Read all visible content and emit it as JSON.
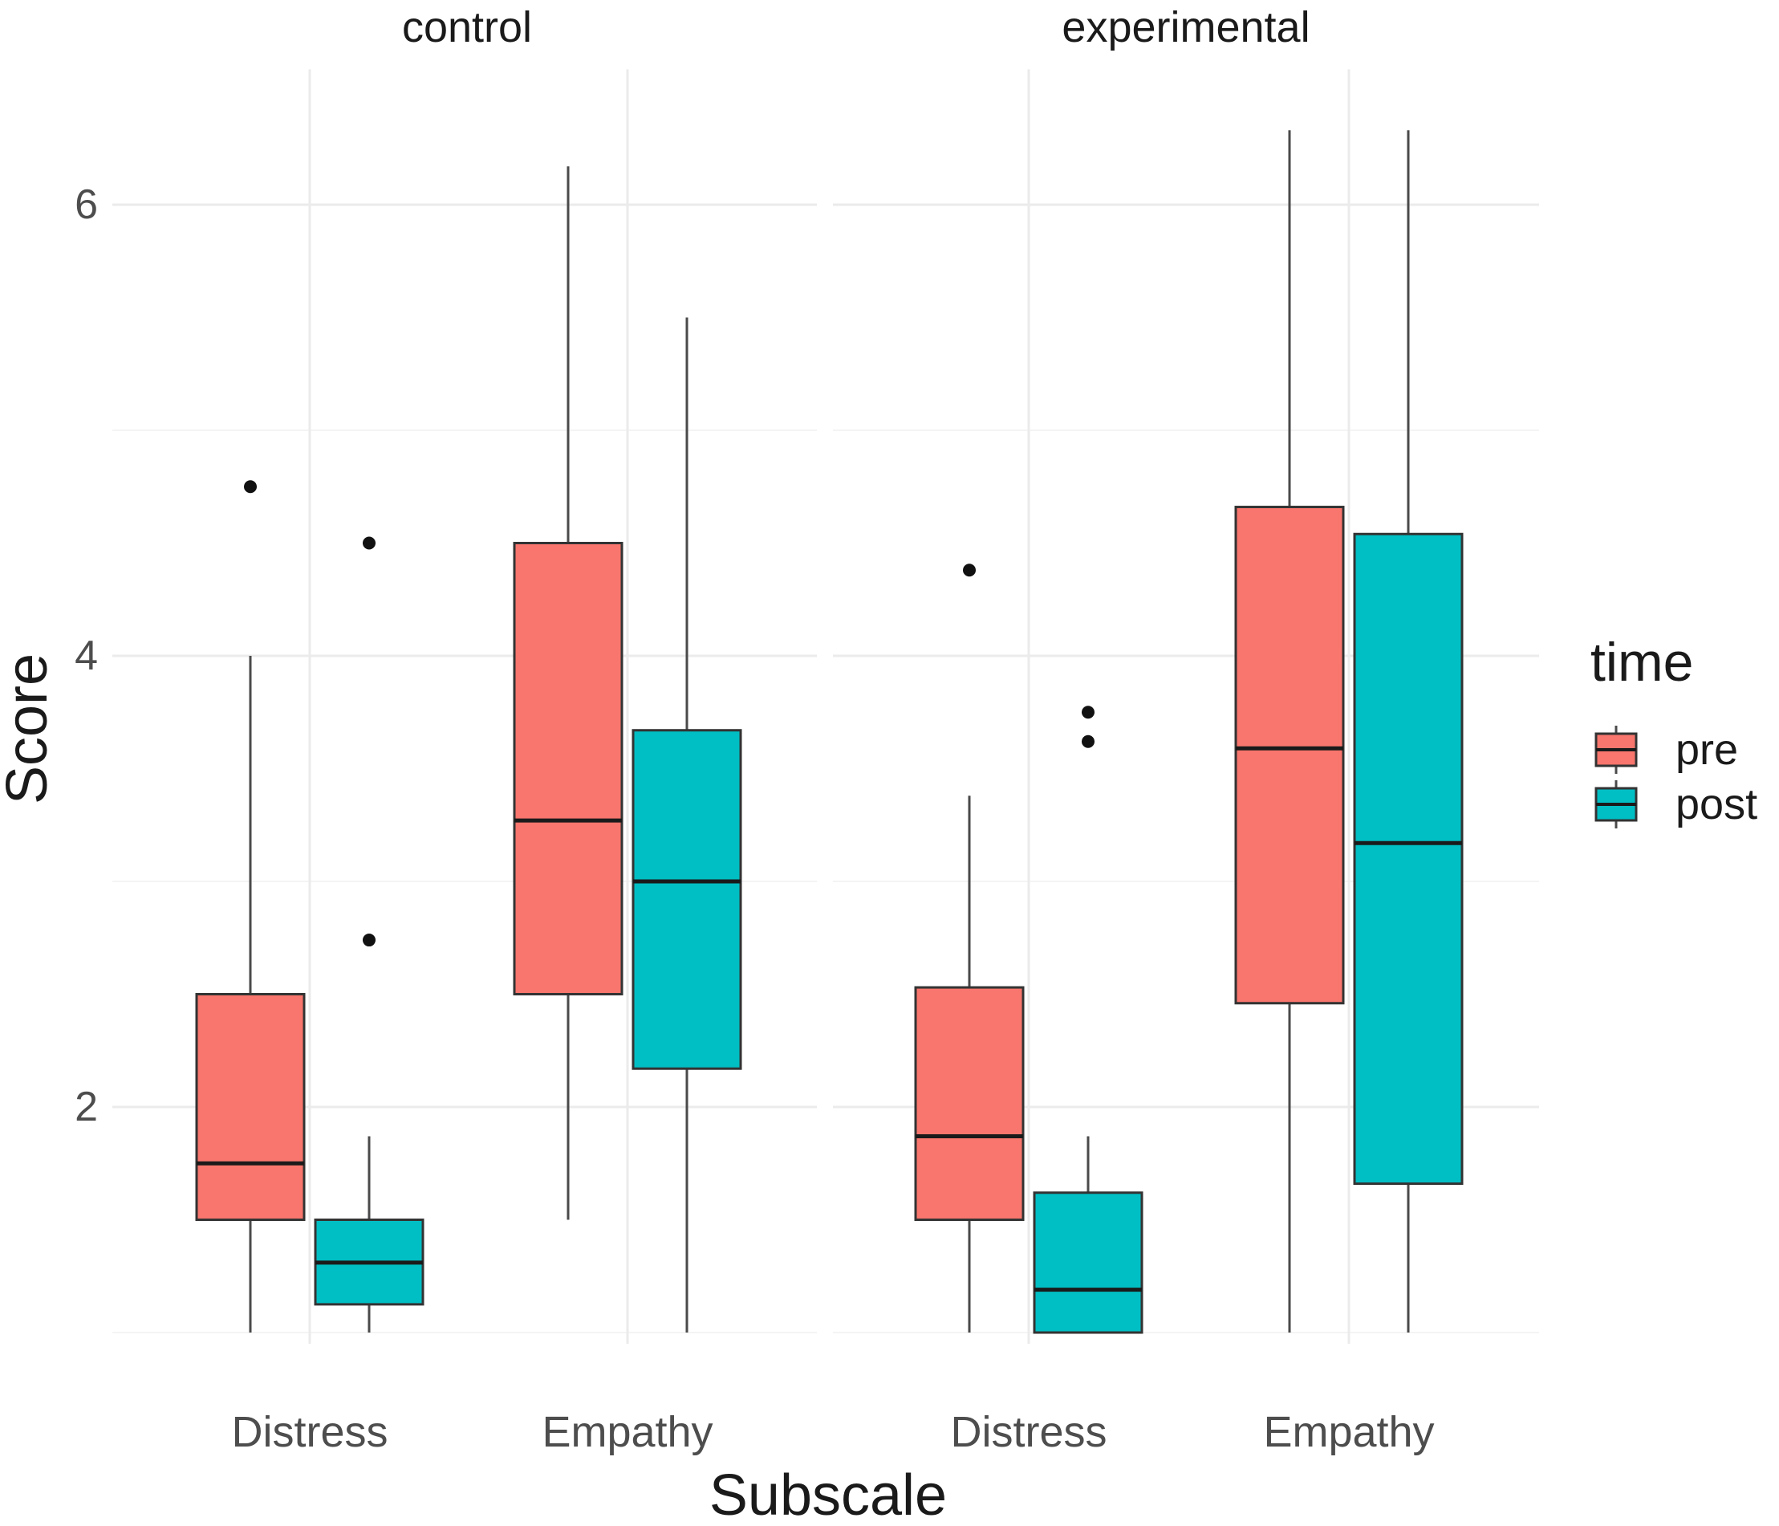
{
  "chart_data": {
    "type": "boxplot",
    "title": "",
    "xlabel": "Subscale",
    "ylabel": "Score",
    "ylim": [
      0.95,
      6.6
    ],
    "yticks": [
      2,
      4,
      6
    ],
    "categories": [
      "Distress",
      "Empathy"
    ],
    "facets": [
      "control",
      "experimental"
    ],
    "legend": {
      "title": "time",
      "position": "right",
      "entries": [
        {
          "name": "pre",
          "color": "#F8766D"
        },
        {
          "name": "post",
          "color": "#00BFC4"
        }
      ]
    },
    "boxes": [
      {
        "facet": "control",
        "category": "Distress",
        "group": "pre",
        "whisker_low": 1.0,
        "q1": 1.5,
        "median": 1.75,
        "q3": 2.5,
        "whisker_high": 4.0,
        "outliers": [
          4.75
        ]
      },
      {
        "facet": "control",
        "category": "Distress",
        "group": "post",
        "whisker_low": 1.0,
        "q1": 1.125,
        "median": 1.31,
        "q3": 1.5,
        "whisker_high": 1.87,
        "outliers": [
          2.74,
          4.5
        ]
      },
      {
        "facet": "control",
        "category": "Empathy",
        "group": "pre",
        "whisker_low": 1.5,
        "q1": 2.5,
        "median": 3.27,
        "q3": 4.5,
        "whisker_high": 6.17,
        "outliers": []
      },
      {
        "facet": "control",
        "category": "Empathy",
        "group": "post",
        "whisker_low": 1.0,
        "q1": 2.17,
        "median": 3.0,
        "q3": 3.67,
        "whisker_high": 5.5,
        "outliers": []
      },
      {
        "facet": "experimental",
        "category": "Distress",
        "group": "pre",
        "whisker_low": 1.0,
        "q1": 1.5,
        "median": 1.87,
        "q3": 2.53,
        "whisker_high": 3.38,
        "outliers": [
          4.38
        ]
      },
      {
        "facet": "experimental",
        "category": "Distress",
        "group": "post",
        "whisker_low": 1.0,
        "q1": 1.0,
        "median": 1.19,
        "q3": 1.62,
        "whisker_high": 1.87,
        "outliers": [
          3.62,
          3.75
        ]
      },
      {
        "facet": "experimental",
        "category": "Empathy",
        "group": "pre",
        "whisker_low": 1.0,
        "q1": 2.46,
        "median": 3.59,
        "q3": 4.66,
        "whisker_high": 6.33,
        "outliers": []
      },
      {
        "facet": "experimental",
        "category": "Empathy",
        "group": "post",
        "whisker_low": 1.0,
        "q1": 1.66,
        "median": 3.17,
        "q3": 4.54,
        "whisker_high": 6.33,
        "outliers": []
      }
    ]
  }
}
